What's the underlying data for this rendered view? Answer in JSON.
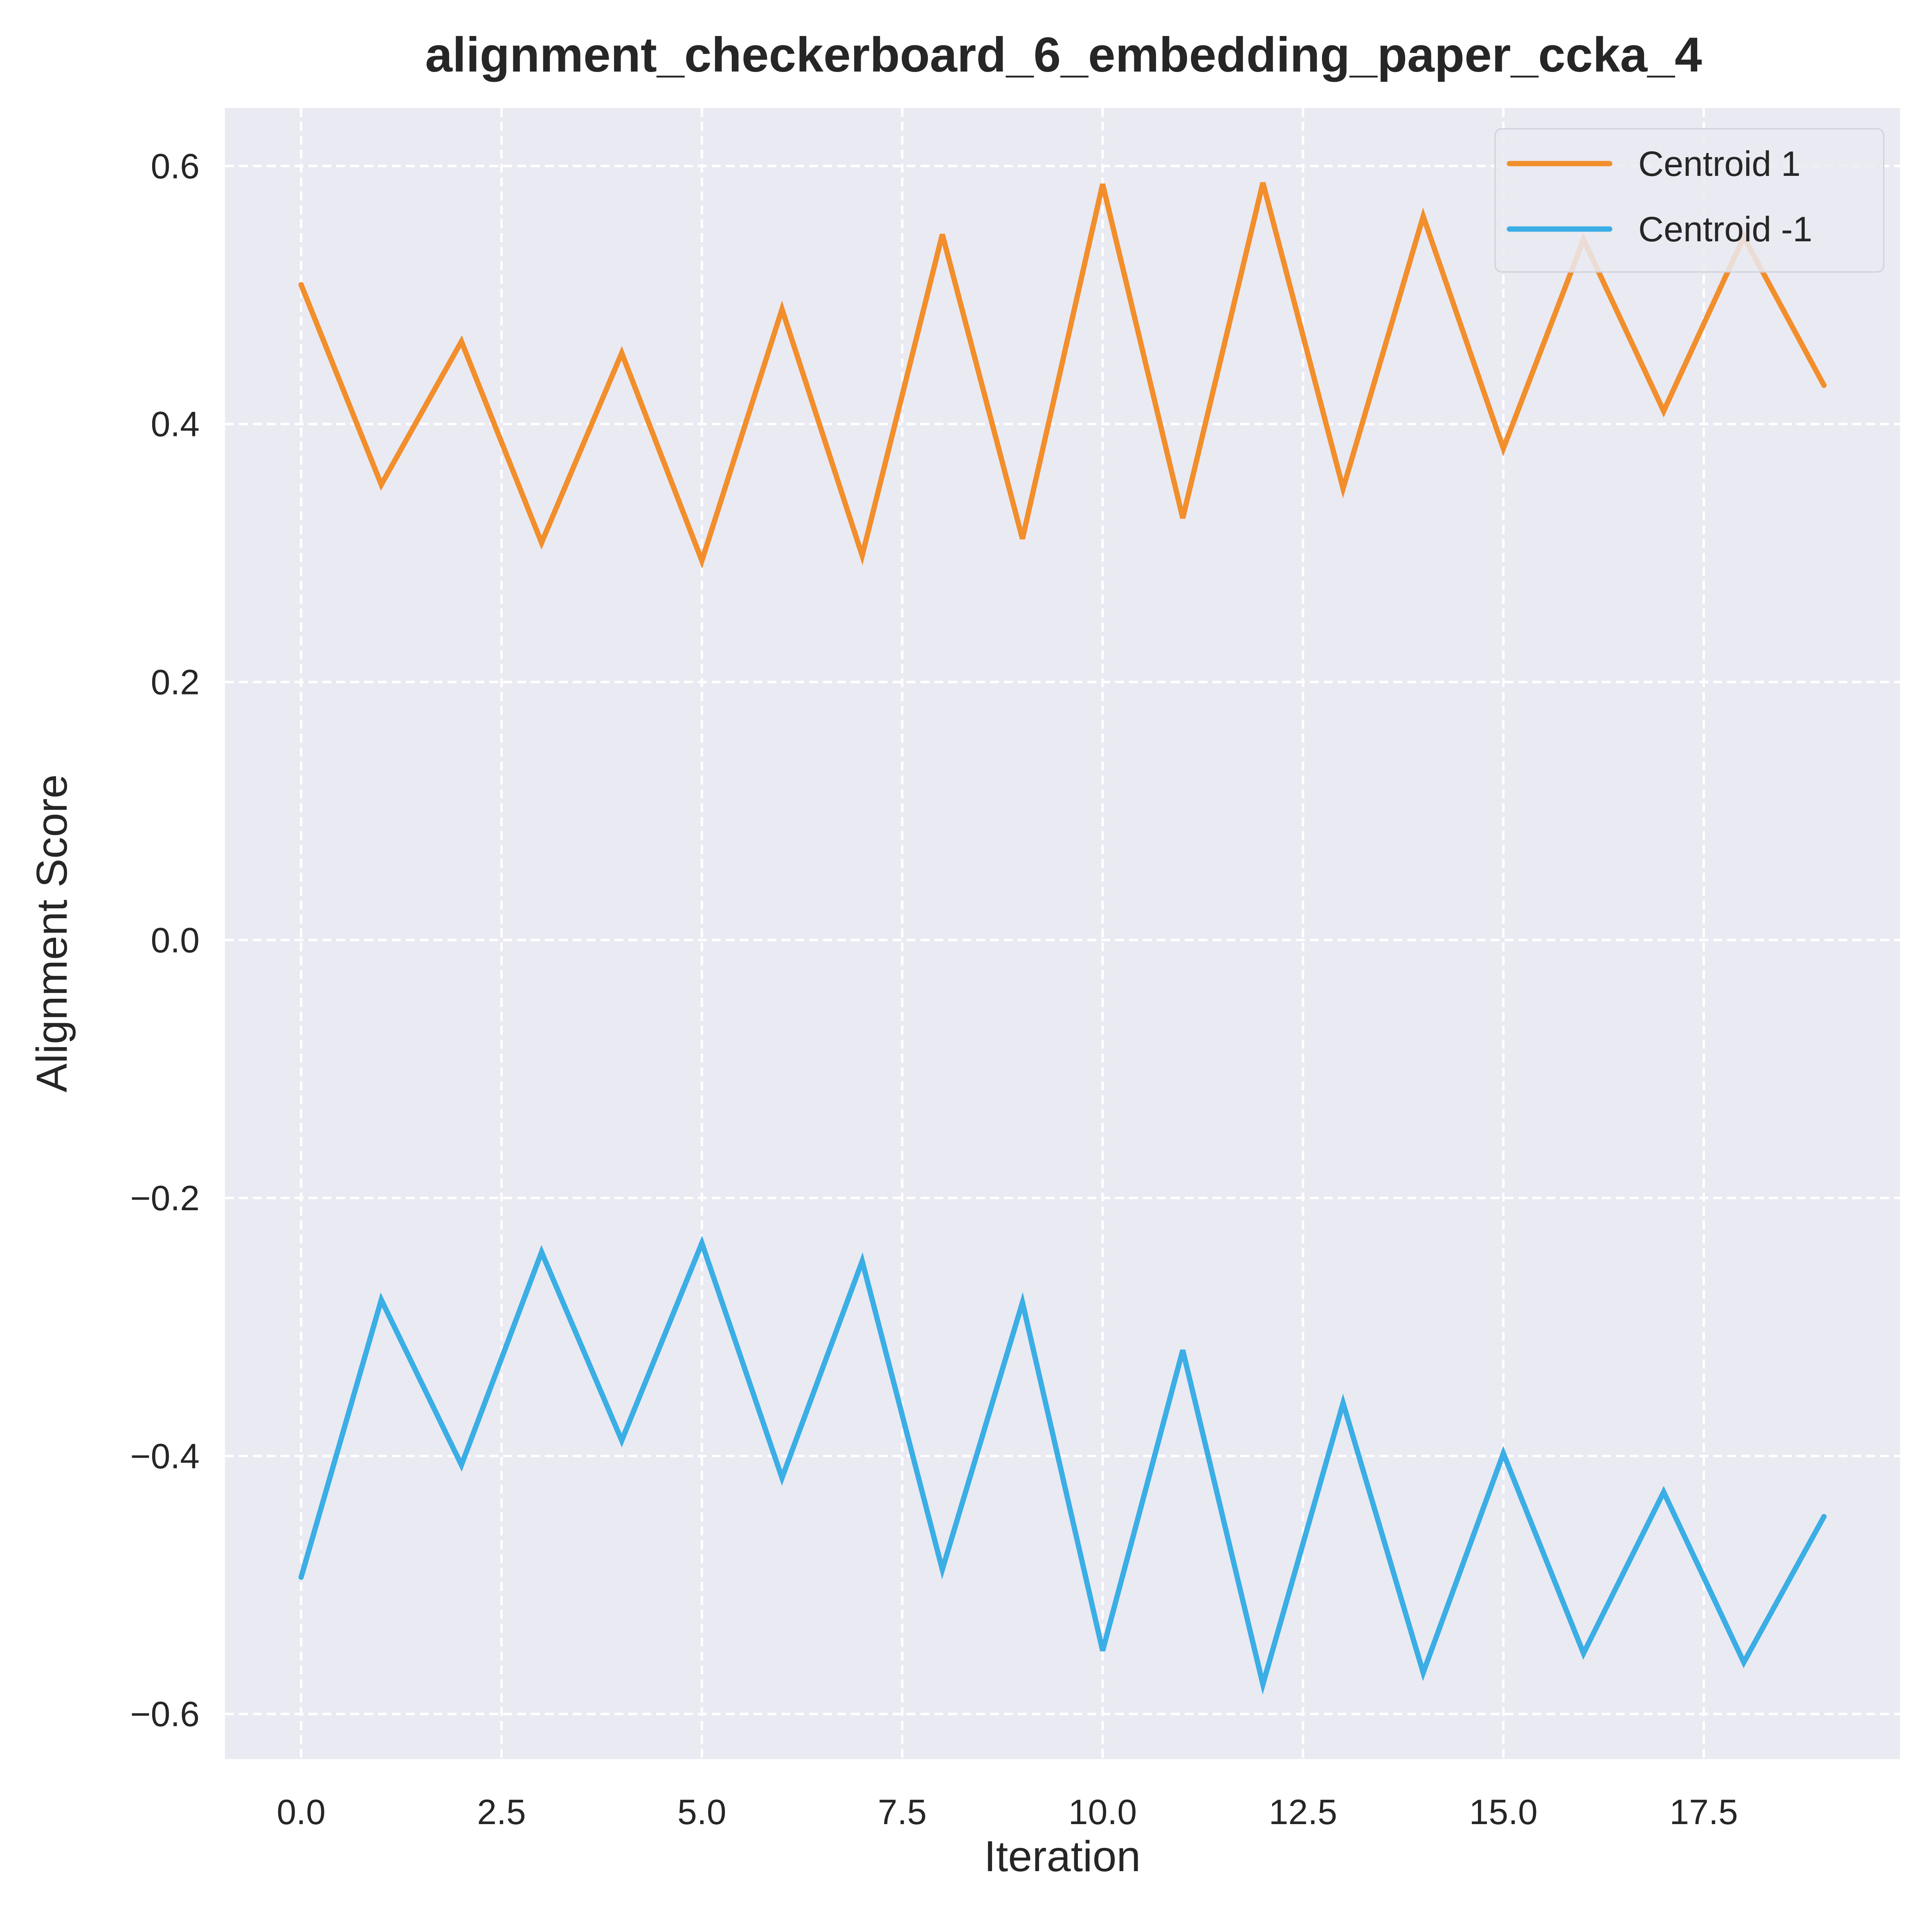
{
  "chart_data": {
    "type": "line",
    "title": "alignment_checkerboard_6_embedding_paper_ccka_4",
    "xlabel": "Iteration",
    "ylabel": "Alignment Score",
    "xlim": [
      -0.95,
      19.95
    ],
    "ylim": [
      -0.635,
      0.645
    ],
    "xticks": [
      0.0,
      2.5,
      5.0,
      7.5,
      10.0,
      12.5,
      15.0,
      17.5
    ],
    "xtick_labels": [
      "0.0",
      "2.5",
      "5.0",
      "7.5",
      "10.0",
      "12.5",
      "15.0",
      "17.5"
    ],
    "yticks": [
      -0.6,
      -0.4,
      -0.2,
      0.0,
      0.2,
      0.4,
      0.6
    ],
    "ytick_labels": [
      "−0.6",
      "−0.4",
      "−0.2",
      "0.0",
      "0.2",
      "0.4",
      "0.6"
    ],
    "grid": true,
    "grid_style": "dashed",
    "legend_position": "top-right",
    "x": [
      0,
      1,
      2,
      3,
      4,
      5,
      6,
      7,
      8,
      9,
      10,
      11,
      12,
      13,
      14,
      15,
      16,
      17,
      18,
      19
    ],
    "series": [
      {
        "name": "Centroid 1",
        "color": "#F28E2B",
        "values": [
          0.508,
          0.353,
          0.464,
          0.308,
          0.455,
          0.294,
          0.489,
          0.298,
          0.547,
          0.311,
          0.586,
          0.327,
          0.587,
          0.35,
          0.561,
          0.381,
          0.543,
          0.41,
          0.545,
          0.43
        ]
      },
      {
        "name": "Centroid -1",
        "color": "#3AAEE5",
        "values": [
          -0.494,
          -0.279,
          -0.407,
          -0.242,
          -0.388,
          -0.235,
          -0.417,
          -0.249,
          -0.488,
          -0.281,
          -0.551,
          -0.318,
          -0.577,
          -0.359,
          -0.568,
          -0.398,
          -0.553,
          -0.428,
          -0.56,
          -0.447
        ]
      }
    ]
  }
}
